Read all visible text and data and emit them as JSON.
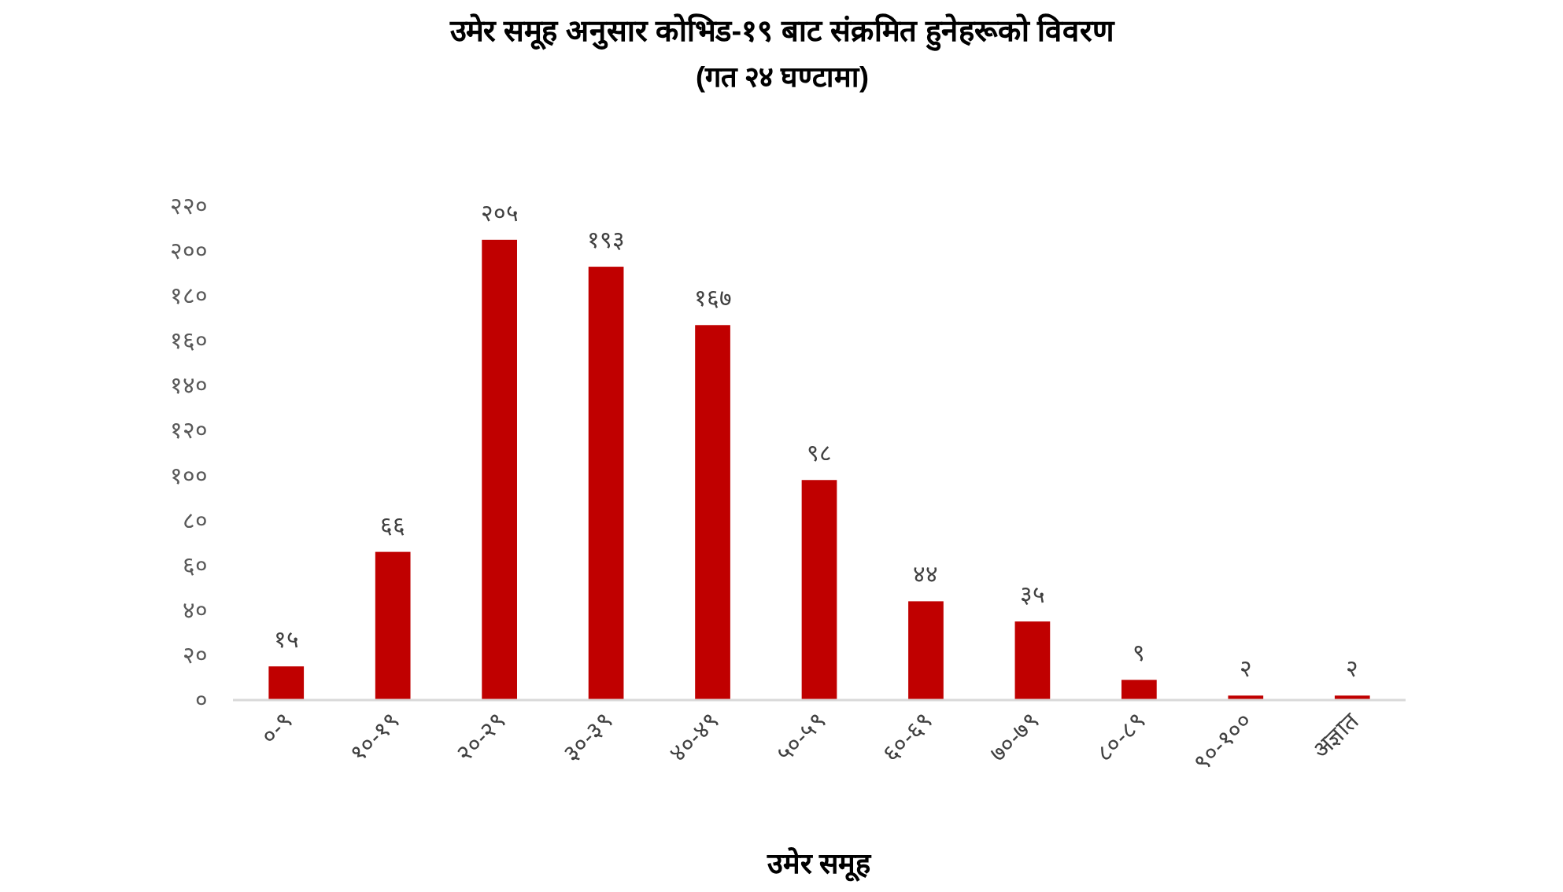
{
  "chart_data": {
    "type": "bar",
    "title": "उमेर समूह अनुसार कोभिड-१९ बाट संक्रमित हुनेहरूको विवरण",
    "subtitle": "(गत २४ घण्टामा)",
    "xlabel": "उमेर समूह",
    "categories": [
      "०-९",
      "१०-१९",
      "२०-२९",
      "३०-३९",
      "४०-४९",
      "५०-५९",
      "६०-६९",
      "७०-७९",
      "८०-८९",
      "९०-१००",
      "अज्ञात"
    ],
    "values": [
      15,
      66,
      205,
      193,
      167,
      98,
      44,
      35,
      9,
      2,
      2
    ],
    "value_labels": [
      "१५",
      "६६",
      "२०५",
      "१९३",
      "१६७",
      "९८",
      "४४",
      "३५",
      "९",
      "२",
      "२"
    ],
    "color": "#c00000",
    "ylim": [
      0,
      220
    ],
    "yticks": [
      {
        "value": 0,
        "label": "०"
      },
      {
        "value": 20,
        "label": "२०"
      },
      {
        "value": 40,
        "label": "४०"
      },
      {
        "value": 60,
        "label": "६०"
      },
      {
        "value": 80,
        "label": "८०"
      },
      {
        "value": 100,
        "label": "१००"
      },
      {
        "value": 120,
        "label": "१२०"
      },
      {
        "value": 140,
        "label": "१४०"
      },
      {
        "value": 160,
        "label": "१६०"
      },
      {
        "value": 180,
        "label": "१८०"
      },
      {
        "value": 200,
        "label": "२००"
      },
      {
        "value": 220,
        "label": "२२०"
      }
    ]
  }
}
